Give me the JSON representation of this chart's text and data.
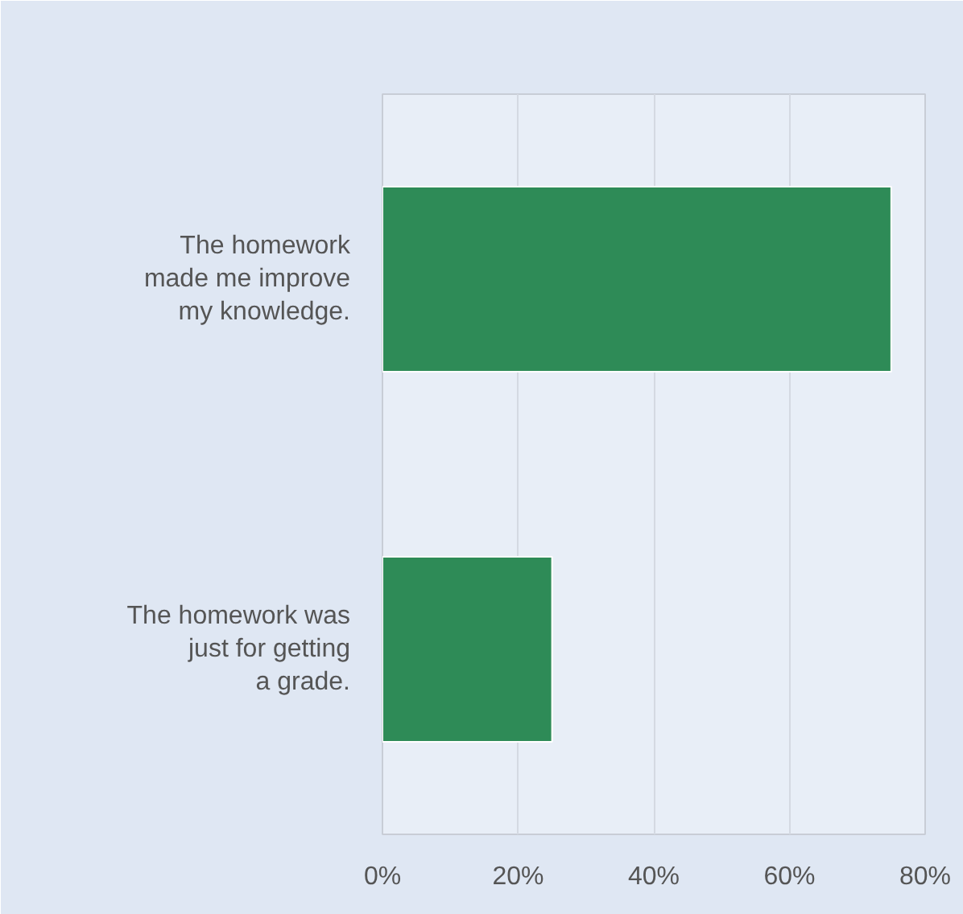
{
  "chart_data": {
    "type": "bar",
    "orientation": "horizontal",
    "categories": [
      "The homework made me improve my knowledge.",
      "The homework was just for getting a grade."
    ],
    "values": [
      75,
      25
    ],
    "color": "#2e8b57",
    "xlim": [
      0,
      80
    ],
    "xticks": [
      {
        "value": 0,
        "label": "0%"
      },
      {
        "value": 20,
        "label": "20%"
      },
      {
        "value": 40,
        "label": "40%"
      },
      {
        "value": 60,
        "label": "60%"
      },
      {
        "value": 80,
        "label": "80%"
      }
    ],
    "grid": "x"
  }
}
